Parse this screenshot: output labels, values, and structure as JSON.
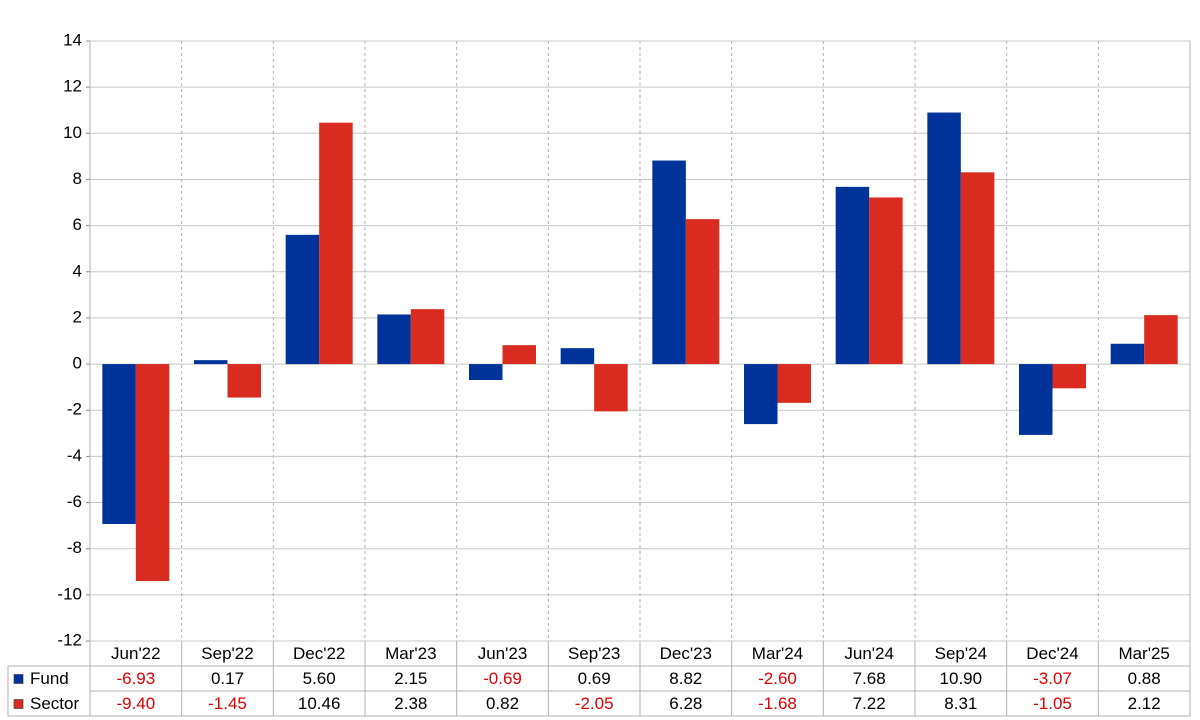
{
  "chart_data": {
    "type": "bar",
    "categories": [
      "Jun'22",
      "Sep'22",
      "Dec'22",
      "Mar'23",
      "Jun'23",
      "Sep'23",
      "Dec'23",
      "Mar'24",
      "Jun'24",
      "Sep'24",
      "Dec'24",
      "Mar'25"
    ],
    "series": [
      {
        "name": "Fund",
        "color": "#003399",
        "values": [
          -6.93,
          0.17,
          5.6,
          2.15,
          -0.69,
          0.69,
          8.82,
          -2.6,
          7.68,
          10.9,
          -3.07,
          0.88
        ],
        "value_labels": [
          "-6.93",
          "0.17",
          "5.60",
          "2.15",
          "-0.69",
          "0.69",
          "8.82",
          "-2.60",
          "7.68",
          "10.90",
          "-3.07",
          "0.88"
        ]
      },
      {
        "name": "Sector",
        "color": "#d92b20",
        "values": [
          -9.4,
          -1.45,
          10.46,
          2.38,
          0.82,
          -2.05,
          6.28,
          -1.68,
          7.22,
          8.31,
          -1.05,
          2.12
        ],
        "value_labels": [
          "-9.40",
          "-1.45",
          "10.46",
          "2.38",
          "0.82",
          "-2.05",
          "6.28",
          "-1.68",
          "7.22",
          "8.31",
          "-1.05",
          "2.12"
        ]
      }
    ],
    "ylim": [
      -12,
      14
    ],
    "yticks": [
      -12,
      -10,
      -8,
      -6,
      -4,
      -2,
      0,
      2,
      4,
      6,
      8,
      10,
      12,
      14
    ],
    "grid": true,
    "negative_label_color": "#e00000"
  }
}
